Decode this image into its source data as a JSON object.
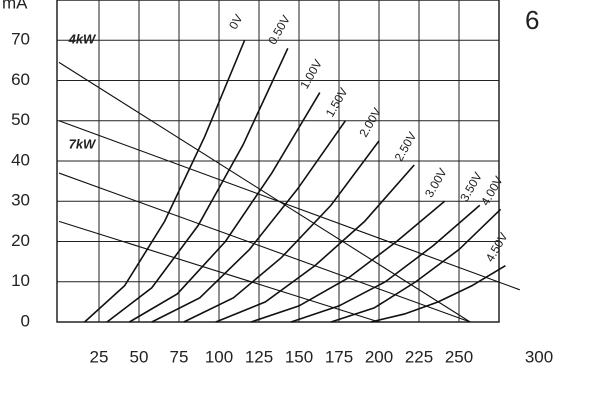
{
  "chart_data": {
    "type": "line",
    "y_label": "mA",
    "figure_number": "6",
    "xlim": [
      0,
      275
    ],
    "ylim": [
      0,
      80
    ],
    "xticks": [
      25,
      50,
      75,
      100,
      125,
      150,
      175,
      200,
      225,
      250,
      300
    ],
    "yticks": [
      0,
      10,
      20,
      30,
      40,
      50,
      60,
      70
    ],
    "grid": true,
    "color": "#111111",
    "series": [
      {
        "name": "0V",
        "x": [
          16,
          41,
          66,
          91,
          116
        ],
        "values": [
          0,
          9,
          25,
          46,
          70
        ]
      },
      {
        "name": "0.50V",
        "x": [
          30,
          58,
          87,
          115,
          143
        ],
        "values": [
          0,
          8.5,
          24,
          44,
          68
        ]
      },
      {
        "name": "1.00V",
        "x": [
          44,
          74,
          104,
          133,
          163
        ],
        "values": [
          0,
          7,
          20,
          37,
          57
        ]
      },
      {
        "name": "1.50V",
        "x": [
          58,
          88,
          119,
          149,
          179
        ],
        "values": [
          0,
          6,
          18,
          33,
          50
        ]
      },
      {
        "name": "2.00V",
        "x": [
          78,
          109,
          139,
          170,
          200
        ],
        "values": [
          0,
          6,
          16,
          29,
          45
        ]
      },
      {
        "name": "2.50V",
        "x": [
          98,
          129,
          160,
          191,
          222
        ],
        "values": [
          0,
          5,
          14,
          25,
          39
        ]
      },
      {
        "name": "3.00V",
        "x": [
          120,
          150,
          181,
          211,
          241
        ],
        "values": [
          0,
          4,
          11,
          20,
          30
        ]
      },
      {
        "name": "3.50V",
        "x": [
          145,
          175,
          204,
          234,
          263
        ],
        "values": [
          0,
          4,
          10,
          19,
          29
        ]
      },
      {
        "name": "4.00V",
        "x": [
          170,
          197,
          223,
          250,
          276
        ],
        "values": [
          0,
          3.5,
          10,
          18,
          28
        ]
      },
      {
        "name": "4.50V",
        "x": [
          195,
          216,
          237,
          258,
          279
        ],
        "values": [
          0,
          2,
          5,
          9,
          14
        ]
      }
    ],
    "load_lines": [
      {
        "x": [
          0,
          257
        ],
        "values": [
          64.5,
          0
        ]
      },
      {
        "x": [
          0,
          288
        ],
        "values": [
          50,
          8
        ]
      },
      {
        "x": [
          0,
          257
        ],
        "values": [
          37,
          0
        ]
      },
      {
        "x": [
          0,
          200
        ],
        "values": [
          25,
          0
        ]
      }
    ],
    "annotations": [
      {
        "text": "4kW",
        "x": 6,
        "y": 70
      },
      {
        "text": "7kW",
        "x": 6,
        "y": 44
      }
    ]
  }
}
